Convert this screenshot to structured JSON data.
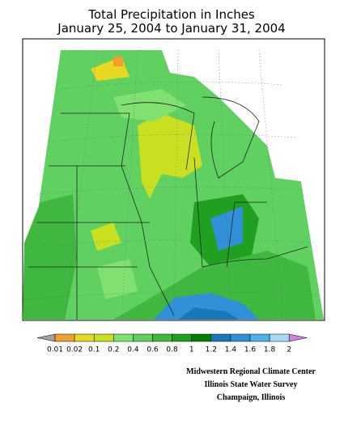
{
  "title": [
    "Total Precipitation in Inches",
    "January 25, 2004 to January 31, 2004"
  ],
  "legend": {
    "ticks": [
      0.01,
      0.02,
      0.1,
      0.2,
      0.4,
      0.6,
      0.8,
      1,
      1.2,
      1.4,
      1.6,
      1.8,
      2
    ],
    "colors": [
      "#a0a0a0",
      "#f0a030",
      "#e8d820",
      "#c8e020",
      "#80e070",
      "#60d060",
      "#40b840",
      "#20a020",
      "#008000",
      "#1878b8",
      "#3090d8",
      "#50b0e8",
      "#a8d8f8",
      "#d080e8"
    ]
  },
  "credits": [
    "Midwestern Regional Climate Center",
    "Illinois State Water Survey",
    "Champaign, Illinois"
  ]
}
